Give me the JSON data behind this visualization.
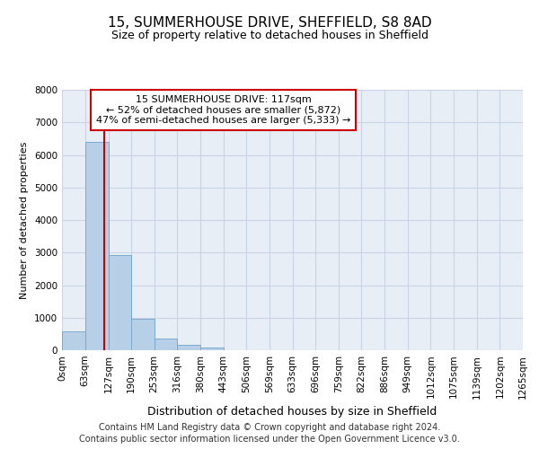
{
  "title1": "15, SUMMERHOUSE DRIVE, SHEFFIELD, S8 8AD",
  "title2": "Size of property relative to detached houses in Sheffield",
  "xlabel": "Distribution of detached houses by size in Sheffield",
  "ylabel": "Number of detached properties",
  "footer1": "Contains HM Land Registry data © Crown copyright and database right 2024.",
  "footer2": "Contains public sector information licensed under the Open Government Licence v3.0.",
  "annotation_line1": "15 SUMMERHOUSE DRIVE: 117sqm",
  "annotation_line2": "← 52% of detached houses are smaller (5,872)",
  "annotation_line3": "47% of semi-detached houses are larger (5,333) →",
  "property_size": 117,
  "bin_edges": [
    0,
    63,
    127,
    190,
    253,
    316,
    380,
    443,
    506,
    569,
    633,
    696,
    759,
    822,
    886,
    949,
    1012,
    1075,
    1139,
    1202,
    1265
  ],
  "bar_heights": [
    580,
    6400,
    2920,
    960,
    370,
    155,
    70,
    0,
    0,
    0,
    0,
    0,
    0,
    0,
    0,
    0,
    0,
    0,
    0,
    0
  ],
  "bar_color": "#b8cfe8",
  "bar_edge_color": "#7aaad0",
  "vline_color": "#cc0000",
  "grid_color": "#c8d4e4",
  "bg_color": "#e8eef6",
  "annotation_box_color": "#cc0000",
  "ylim": [
    0,
    8000
  ],
  "yticks": [
    0,
    1000,
    2000,
    3000,
    4000,
    5000,
    6000,
    7000,
    8000
  ],
  "title1_fontsize": 11,
  "title2_fontsize": 9,
  "ylabel_fontsize": 8,
  "xlabel_fontsize": 9,
  "tick_fontsize": 7.5,
  "annotation_fontsize": 8,
  "footer_fontsize": 7
}
